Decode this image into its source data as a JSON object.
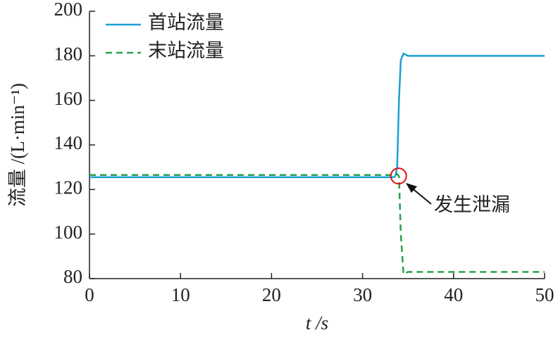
{
  "chart_data": {
    "type": "line",
    "x_label": "t /s",
    "y_label": "流量 /(L·min⁻¹)",
    "x": [
      0,
      33.4,
      33.6,
      33.8,
      34.0,
      34.2,
      34.5,
      35,
      36,
      50
    ],
    "series": [
      {
        "name": "首站流量",
        "color": "#1a9fd4",
        "dash": false,
        "values": [
          125.5,
          125.5,
          126,
          130,
          160,
          178,
          181,
          180,
          180,
          180
        ]
      },
      {
        "name": "末站流量",
        "color": "#2aa04a",
        "dash": true,
        "values": [
          126.5,
          126.5,
          126.5,
          127,
          126,
          100,
          82,
          83,
          83,
          83
        ]
      }
    ],
    "xlim": [
      0,
      50
    ],
    "xticks": [
      0,
      10,
      20,
      30,
      40,
      50
    ],
    "ylim": [
      80,
      200
    ],
    "yticks": [
      80,
      100,
      120,
      140,
      160,
      180,
      200
    ],
    "grid": false,
    "annotation": "发生泄漏"
  }
}
